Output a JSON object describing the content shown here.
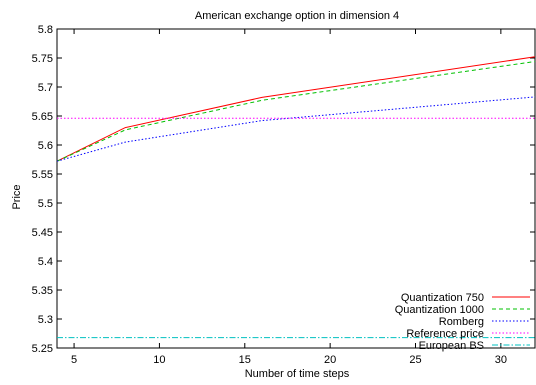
{
  "chart_data": {
    "type": "line",
    "title": "American exchange option in dimension 4",
    "xlabel": "Number of time steps",
    "ylabel": "Price",
    "xlim": [
      4,
      32
    ],
    "ylim": [
      5.25,
      5.8
    ],
    "xticks": [
      5,
      10,
      15,
      20,
      25,
      30
    ],
    "yticks": [
      5.25,
      5.3,
      5.35,
      5.4,
      5.45,
      5.5,
      5.55,
      5.6,
      5.65,
      5.7,
      5.75,
      5.8
    ],
    "grid": false,
    "legend_position": "bottom-right",
    "series": [
      {
        "name": "Quantization 750",
        "color": "#ff0000",
        "dash": "solid",
        "x": [
          4,
          8,
          16,
          32
        ],
        "y": [
          5.572,
          5.63,
          5.682,
          5.752
        ]
      },
      {
        "name": "Quantization 1000",
        "color": "#00c000",
        "dash": "dashed",
        "x": [
          4,
          8,
          16,
          32
        ],
        "y": [
          5.572,
          5.626,
          5.677,
          5.744
        ]
      },
      {
        "name": "Romberg",
        "color": "#0000ff",
        "dash": "dotted",
        "x": [
          4,
          8,
          16,
          32
        ],
        "y": [
          5.572,
          5.605,
          5.642,
          5.683
        ]
      },
      {
        "name": "Reference price",
        "color": "#ff00ff",
        "dash": "dotted",
        "x": [
          4,
          32
        ],
        "y": [
          5.646,
          5.646
        ]
      },
      {
        "name": "European BS",
        "color": "#00c0c0",
        "dash": "dashdot",
        "x": [
          4,
          32
        ],
        "y": [
          5.268,
          5.268
        ]
      }
    ]
  }
}
